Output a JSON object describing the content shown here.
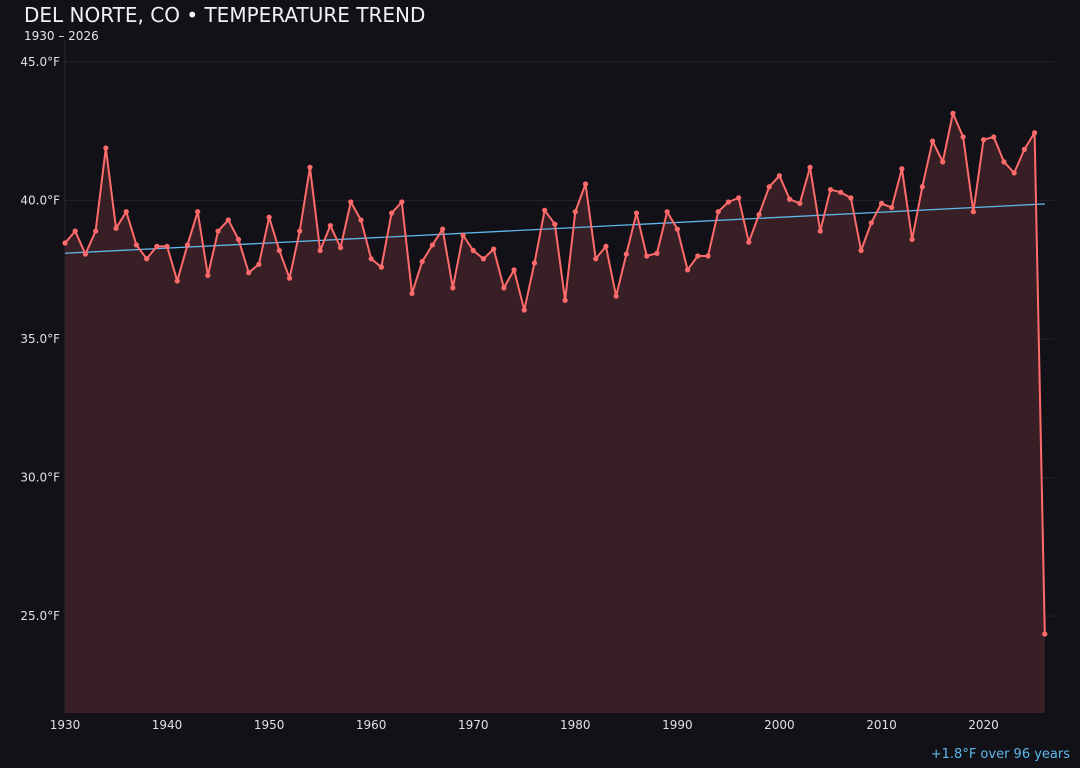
{
  "chart_data": {
    "type": "line",
    "title": "DEL NORTE, CO • TEMPERATURE TREND",
    "subtitle": "1930 – 2026",
    "annotation": "+1.8°F over 96 years",
    "xlim": [
      1930,
      2027
    ],
    "ylim": [
      21.5,
      45.8
    ],
    "x_ticks": [
      1930,
      1940,
      1950,
      1960,
      1970,
      1980,
      1990,
      2000,
      2010,
      2020
    ],
    "y_ticks": [
      25,
      30,
      35,
      40,
      45
    ],
    "y_tick_labels": [
      "25.0°F",
      "30.0°F",
      "35.0°F",
      "40.0°F",
      "45.0°F"
    ],
    "grid": "horizontal",
    "colors": {
      "series": "#ff6b6b",
      "fill": "#371f25",
      "trend": "#5fb8ec",
      "background": "#121117"
    },
    "x": [
      1930,
      1931,
      1932,
      1933,
      1934,
      1935,
      1936,
      1937,
      1938,
      1939,
      1940,
      1941,
      1942,
      1943,
      1944,
      1945,
      1946,
      1947,
      1948,
      1949,
      1950,
      1951,
      1952,
      1953,
      1954,
      1955,
      1956,
      1957,
      1958,
      1959,
      1960,
      1961,
      1962,
      1963,
      1964,
      1965,
      1966,
      1967,
      1968,
      1969,
      1970,
      1971,
      1972,
      1973,
      1974,
      1975,
      1976,
      1977,
      1978,
      1979,
      1980,
      1981,
      1982,
      1983,
      1984,
      1985,
      1986,
      1987,
      1988,
      1989,
      1990,
      1991,
      1992,
      1993,
      1994,
      1995,
      1996,
      1997,
      1998,
      1999,
      2000,
      2001,
      2002,
      2003,
      2004,
      2005,
      2006,
      2007,
      2008,
      2009,
      2010,
      2011,
      2012,
      2013,
      2014,
      2015,
      2016,
      2017,
      2018,
      2019,
      2020,
      2021,
      2022,
      2023,
      2024,
      2025,
      2026
    ],
    "series": [
      {
        "values": [
          38.47,
          38.9,
          38.07,
          38.9,
          41.9,
          39.0,
          39.6,
          38.4,
          37.9,
          38.35,
          38.35,
          37.1,
          38.4,
          39.6,
          37.3,
          38.9,
          39.3,
          38.6,
          37.4,
          37.7,
          39.4,
          38.2,
          37.2,
          38.9,
          41.2,
          38.2,
          39.1,
          38.3,
          39.95,
          39.3,
          37.9,
          37.6,
          39.55,
          39.95,
          36.65,
          37.8,
          38.4,
          38.97,
          36.85,
          38.75,
          38.2,
          37.9,
          38.25,
          36.85,
          37.5,
          36.05,
          37.75,
          39.65,
          39.15,
          36.4,
          39.6,
          40.6,
          37.9,
          38.35,
          36.55,
          38.07,
          39.55,
          38.0,
          38.1,
          39.6,
          38.97,
          37.5,
          38.0,
          38.0,
          39.6,
          39.95,
          40.1,
          38.5,
          39.5,
          40.5,
          40.9,
          40.05,
          39.9,
          41.2,
          38.9,
          40.4,
          40.3,
          40.1,
          38.2,
          39.2,
          39.9,
          39.75,
          41.15,
          38.6,
          40.5,
          42.15,
          41.4,
          43.15,
          42.3,
          39.6,
          42.2,
          42.3,
          41.4,
          41.0,
          41.85,
          42.45,
          24.35
        ]
      }
    ],
    "trend": {
      "x": [
        1930,
        2026
      ],
      "y": [
        38.1,
        39.88
      ]
    }
  }
}
